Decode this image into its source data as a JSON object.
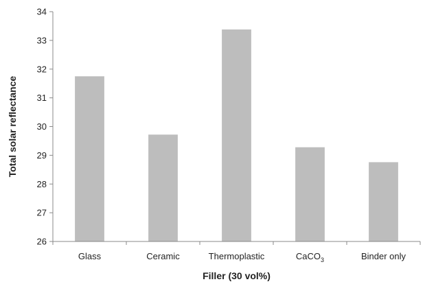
{
  "chart_data": {
    "type": "bar",
    "categories": [
      "Glass",
      "Ceramic",
      "Thermoplastic",
      "CaCO3",
      "Binder only"
    ],
    "category_labels": [
      {
        "text": "Glass"
      },
      {
        "text": "Ceramic"
      },
      {
        "text": "Thermoplastic"
      },
      {
        "text": "CaCO",
        "sub": "3"
      },
      {
        "text": "Binder only"
      }
    ],
    "values": [
      31.75,
      29.72,
      33.38,
      29.28,
      28.76
    ],
    "title": "",
    "xlabel": "Filler (30 vol%)",
    "ylabel": "Total solar reflectance",
    "ylim": [
      26,
      34
    ],
    "yticks": [
      26,
      27,
      28,
      29,
      30,
      31,
      32,
      33,
      34
    ],
    "grid": false,
    "legend": "none",
    "colors": {
      "bar": "#bdbdbd",
      "axis": "#888888",
      "text": "#222222"
    }
  }
}
